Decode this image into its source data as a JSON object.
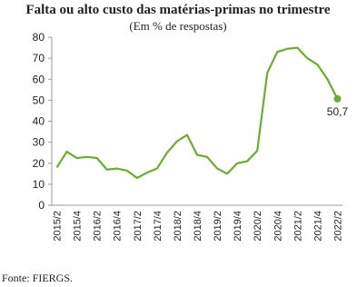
{
  "chart_data": {
    "type": "line",
    "title": "Falta ou alto custo das matérias-primas no trimestre",
    "subtitle": "(Em % de respostas)",
    "source": "Fonte: FIERGS.",
    "categories": [
      "2015/2",
      null,
      "2015/4",
      null,
      "2016/2",
      null,
      "2016/4",
      null,
      "2017/2",
      null,
      "2017/4",
      null,
      "2018/2",
      null,
      "2018/4",
      null,
      "2019/2",
      null,
      "2019/4",
      null,
      "2020/2",
      null,
      "2020/4",
      null,
      "2021/2",
      null,
      "2021/4",
      null,
      "2022/2"
    ],
    "series": [
      {
        "color": "#6aaf2a",
        "values": [
          18,
          25.5,
          22.5,
          23,
          22.5,
          17,
          17.5,
          16.5,
          13,
          15.5,
          17.5,
          25,
          30.5,
          33.5,
          24,
          23,
          17.5,
          15,
          20,
          21,
          26,
          63,
          73,
          74.5,
          75,
          70,
          67,
          60,
          50.7
        ],
        "value_labels": [
          null,
          null,
          null,
          null,
          null,
          null,
          null,
          null,
          null,
          null,
          null,
          null,
          null,
          null,
          null,
          null,
          null,
          null,
          null,
          null,
          null,
          null,
          null,
          null,
          null,
          null,
          null,
          null,
          "50,7"
        ]
      }
    ],
    "ylim": [
      0,
      80
    ],
    "yticks": [
      0,
      10,
      20,
      30,
      40,
      50,
      60,
      70,
      80
    ],
    "grid": false
  }
}
